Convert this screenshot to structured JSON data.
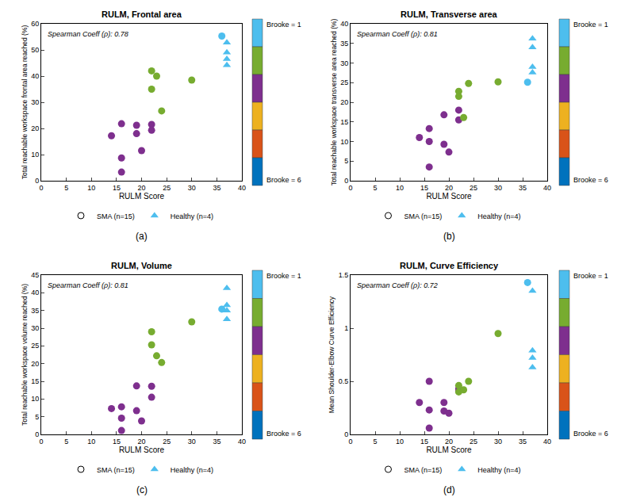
{
  "chart_data": [
    {
      "type": "scatter",
      "title": "RULM, Frontal area",
      "panel_label": "(a)",
      "annotation": "Spearman Coeff (ρ): 0.78",
      "x_label": "RULM Score",
      "y_label": "Total reachable workspace frontal area reached (%)",
      "xlim": [
        0,
        40
      ],
      "xticks": [
        0,
        5,
        10,
        15,
        20,
        25,
        30,
        35,
        40
      ],
      "ylim": [
        0,
        60
      ],
      "yticks": [
        0,
        10,
        20,
        30,
        40,
        50,
        60
      ],
      "legend": "bottom",
      "color_scale": {
        "colors": [
          "#4DBEEE",
          "#77AC30",
          "#7E2F8E",
          "#EDB120",
          "#D95319",
          "#0072BD"
        ],
        "labels": [
          {
            "value": 1,
            "label": "Brooke = 1"
          },
          {
            "value": 6,
            "label": "Brooke = 6"
          }
        ]
      },
      "series": [
        {
          "name": "SMA (n=15)",
          "marker": "circle",
          "x": [
            14,
            16,
            16,
            16,
            19,
            19,
            20,
            22,
            22,
            22,
            22,
            23,
            24,
            30,
            36
          ],
          "values": [
            17.2,
            21.8,
            8.7,
            3.3,
            21.2,
            18,
            11.5,
            21.5,
            19.3,
            42,
            35,
            40,
            26.7,
            38.5,
            55.3
          ],
          "colors": [
            "#7E2F8E",
            "#7E2F8E",
            "#7E2F8E",
            "#7E2F8E",
            "#7E2F8E",
            "#7E2F8E",
            "#7E2F8E",
            "#7E2F8E",
            "#7E2F8E",
            "#77AC30",
            "#77AC30",
            "#77AC30",
            "#77AC30",
            "#77AC30",
            "#4DBEEE"
          ]
        },
        {
          "name": "Healthy (n=4)",
          "marker": "triangle",
          "color": "#4DBEEE",
          "x": [
            37,
            37,
            37,
            37
          ],
          "values": [
            52.8,
            49,
            46.5,
            44.2
          ]
        }
      ]
    },
    {
      "type": "scatter",
      "title": "RULM, Transverse area",
      "panel_label": "(b)",
      "annotation": "Spearman Coeff (ρ): 0.81",
      "x_label": "RULM Score",
      "y_label": "Total reachable workspace transverse area reached (%)",
      "xlim": [
        0,
        40
      ],
      "xticks": [
        0,
        5,
        10,
        15,
        20,
        25,
        30,
        35,
        40
      ],
      "ylim": [
        0,
        40
      ],
      "yticks": [
        0,
        5,
        10,
        15,
        20,
        25,
        30,
        35,
        40
      ],
      "legend": "bottom",
      "color_scale": {
        "colors": [
          "#4DBEEE",
          "#77AC30",
          "#7E2F8E",
          "#EDB120",
          "#D95319",
          "#0072BD"
        ],
        "labels": [
          {
            "value": 1,
            "label": "Brooke = 1"
          },
          {
            "value": 6,
            "label": "Brooke = 6"
          }
        ]
      },
      "series": [
        {
          "name": "SMA (n=15)",
          "marker": "circle",
          "x": [
            14,
            16,
            16,
            16,
            19,
            19,
            20,
            22,
            22,
            22,
            22,
            23,
            24,
            30,
            36
          ],
          "values": [
            11,
            13.3,
            10,
            3.5,
            16.8,
            9.3,
            7.3,
            18,
            15.5,
            22.8,
            21.5,
            16.1,
            24.8,
            25.2,
            25.1
          ],
          "colors": [
            "#7E2F8E",
            "#7E2F8E",
            "#7E2F8E",
            "#7E2F8E",
            "#7E2F8E",
            "#7E2F8E",
            "#7E2F8E",
            "#7E2F8E",
            "#7E2F8E",
            "#77AC30",
            "#77AC30",
            "#77AC30",
            "#77AC30",
            "#77AC30",
            "#4DBEEE"
          ]
        },
        {
          "name": "Healthy (n=4)",
          "marker": "triangle",
          "color": "#4DBEEE",
          "x": [
            37,
            37,
            37,
            37
          ],
          "values": [
            36.2,
            34,
            29,
            27.6
          ]
        }
      ]
    },
    {
      "type": "scatter",
      "title": "RULM, Volume",
      "panel_label": "(c)",
      "annotation": "Spearman Coeff (ρ): 0.81",
      "x_label": "RULM Score",
      "y_label": "Total reachable workspace volume reached (%)",
      "xlim": [
        0,
        40
      ],
      "xticks": [
        0,
        5,
        10,
        15,
        20,
        25,
        30,
        35,
        40
      ],
      "ylim": [
        0,
        45
      ],
      "yticks": [
        0,
        5,
        10,
        15,
        20,
        25,
        30,
        35,
        40,
        45
      ],
      "legend": "bottom",
      "color_scale": {
        "colors": [
          "#4DBEEE",
          "#77AC30",
          "#7E2F8E",
          "#EDB120",
          "#D95319",
          "#0072BD"
        ],
        "labels": [
          {
            "value": 1,
            "label": "Brooke = 1"
          },
          {
            "value": 6,
            "label": "Brooke = 6"
          }
        ]
      },
      "series": [
        {
          "name": "SMA (n=15)",
          "marker": "circle",
          "x": [
            14,
            16,
            16,
            16,
            19,
            19,
            20,
            22,
            22,
            22,
            22,
            23,
            24,
            30,
            36
          ],
          "values": [
            7.3,
            7.8,
            4.6,
            1.1,
            13.7,
            6.7,
            3.8,
            13.6,
            10.5,
            29,
            25.3,
            22.2,
            20.3,
            31.8,
            35.4
          ],
          "colors": [
            "#7E2F8E",
            "#7E2F8E",
            "#7E2F8E",
            "#7E2F8E",
            "#7E2F8E",
            "#7E2F8E",
            "#7E2F8E",
            "#7E2F8E",
            "#7E2F8E",
            "#77AC30",
            "#77AC30",
            "#77AC30",
            "#77AC30",
            "#77AC30",
            "#4DBEEE"
          ]
        },
        {
          "name": "Healthy (n=4)",
          "marker": "triangle",
          "color": "#4DBEEE",
          "x": [
            37,
            37,
            37,
            37
          ],
          "values": [
            41.3,
            36.5,
            35,
            32.5
          ]
        }
      ]
    },
    {
      "type": "scatter",
      "title": "RULM, Curve Efficiency",
      "panel_label": "(d)",
      "annotation": "Spearman Coeff (ρ): 0.72",
      "x_label": "RULM Score",
      "y_label": "Mean Shoulder-Elbow Curve Efficiency",
      "xlim": [
        0,
        40
      ],
      "xticks": [
        0,
        5,
        10,
        15,
        20,
        25,
        30,
        35,
        40
      ],
      "ylim": [
        0,
        1.5
      ],
      "yticks": [
        0,
        0.5,
        1,
        1.5
      ],
      "legend": "bottom",
      "color_scale": {
        "colors": [
          "#4DBEEE",
          "#77AC30",
          "#7E2F8E",
          "#EDB120",
          "#D95319",
          "#0072BD"
        ],
        "labels": [
          {
            "value": 1,
            "label": "Brooke = 1"
          },
          {
            "value": 6,
            "label": "Brooke = 6"
          }
        ]
      },
      "series": [
        {
          "name": "SMA (n=15)",
          "marker": "circle",
          "x": [
            14,
            16,
            16,
            16,
            19,
            19,
            20,
            22,
            22,
            22,
            22,
            23,
            24,
            30,
            36
          ],
          "values": [
            0.3,
            0.5,
            0.23,
            0.06,
            0.3,
            0.22,
            0.2,
            0.43,
            0.41,
            0.46,
            0.4,
            0.42,
            0.5,
            0.95,
            1.43
          ],
          "colors": [
            "#7E2F8E",
            "#7E2F8E",
            "#7E2F8E",
            "#7E2F8E",
            "#7E2F8E",
            "#7E2F8E",
            "#7E2F8E",
            "#7E2F8E",
            "#7E2F8E",
            "#77AC30",
            "#77AC30",
            "#77AC30",
            "#77AC30",
            "#77AC30",
            "#4DBEEE"
          ]
        },
        {
          "name": "Healthy (n=4)",
          "marker": "triangle",
          "color": "#4DBEEE",
          "x": [
            37,
            37,
            37,
            37
          ],
          "values": [
            1.35,
            0.79,
            0.72,
            0.63
          ]
        }
      ]
    }
  ]
}
